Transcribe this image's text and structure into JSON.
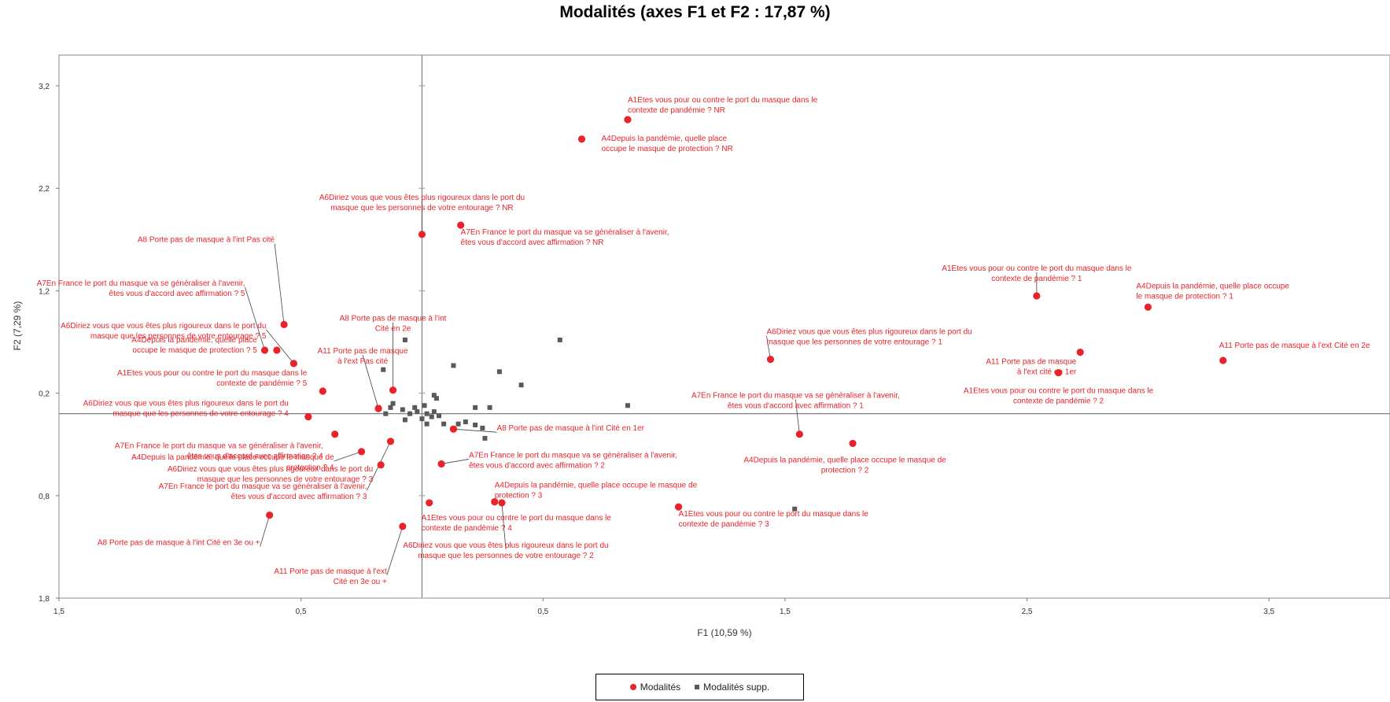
{
  "chart_data": {
    "type": "scatter",
    "title": "Modalités (axes F1 et F2 : 17,87 %)",
    "xlabel": "F1 (10,59 %)",
    "ylabel": "F2 (7,29 %)",
    "xlim": [
      -1.5,
      4.0
    ],
    "ylim": [
      -1.8,
      3.5
    ],
    "x_ticks": [
      {
        "v": -1.5,
        "label": "1,5"
      },
      {
        "v": -0.5,
        "label": "0,5"
      },
      {
        "v": 0.5,
        "label": "0,5"
      },
      {
        "v": 1.5,
        "label": "1,5"
      },
      {
        "v": 2.5,
        "label": "2,5"
      },
      {
        "v": 3.5,
        "label": "3,5"
      }
    ],
    "y_ticks": [
      {
        "v": 3.2,
        "label": "3,2"
      },
      {
        "v": 2.2,
        "label": "2,2"
      },
      {
        "v": 1.2,
        "label": "1,2"
      },
      {
        "v": 0.2,
        "label": "0,2"
      },
      {
        "v": -0.8,
        "label": "0,8"
      },
      {
        "v": -1.8,
        "label": "1,8"
      }
    ],
    "grid": false,
    "legend_position": "bottom",
    "legend": [
      "Modalités",
      "Modalités supp."
    ],
    "colors": {
      "active": "#e8232a",
      "supplementary": "#595959"
    },
    "series": [
      {
        "name": "Modalités",
        "points": [
          {
            "x": 0.85,
            "y": 2.87,
            "label": [
              "A1Etes vous  pour ou contre  le port du masque  dans le",
              "contexte  de pandémie  ? NR"
            ]
          },
          {
            "x": 0.66,
            "y": 2.68,
            "label": [
              "A4Depuis la pandémie,  quelle place",
              "occupe  le masque  de protection  ? NR"
            ]
          },
          {
            "x": 0.0,
            "y": 1.75,
            "label": [
              "A6Diriez vous  que vous êtes plus rigoureux  dans le port du",
              "masque  que les personnes  de votre entourage  ? NR"
            ]
          },
          {
            "x": 0.16,
            "y": 1.84,
            "label": [
              "A7En France  le port du masque  va se généraliser à l'avenir,",
              "êtes vous  d'accord avec affirmation  ? NR"
            ]
          },
          {
            "x": -0.57,
            "y": 0.87,
            "label": [
              "A8 Porte pas de masque  à l'int Pas cité"
            ]
          },
          {
            "x": -0.65,
            "y": 0.62,
            "label": [
              "A7En France  le port du masque  va se généraliser à l'avenir,",
              "êtes vous  d'accord avec affirmation  ? 5"
            ]
          },
          {
            "x": -0.53,
            "y": 0.49,
            "label": [
              "A6Diriez vous  que vous êtes plus rigoureux  dans le port du",
              "masque  que les personnes  de votre entourage  ? 5"
            ]
          },
          {
            "x": -0.6,
            "y": 0.62,
            "label": [
              "A4Depuis la pandémie,  quelle place",
              "occupe  le masque  de protection  ? 5"
            ]
          },
          {
            "x": -0.41,
            "y": 0.22,
            "label": [
              "A1Etes vous  pour ou contre  le port du masque  dans le",
              "contexte  de pandémie  ? 5"
            ]
          },
          {
            "x": -0.47,
            "y": -0.03,
            "label": [
              "A6Diriez vous  que vous êtes plus rigoureux  dans le port du",
              "masque  que les personnes  de votre entourage  ? 4"
            ]
          },
          {
            "x": -0.36,
            "y": -0.2,
            "label": [
              "A7En France  le port du masque  va se généraliser à l'avenir,",
              "êtes vous  d'accord avec affirmation  ? 4"
            ]
          },
          {
            "x": -0.25,
            "y": -0.37,
            "label": [
              "A4Depuis la pandémie,  quelle place occupe  le masque  de",
              "protection  ? 4"
            ]
          },
          {
            "x": -0.13,
            "y": -0.27,
            "label": [
              "A7En France  le port du masque  va se généraliser à l'avenir,",
              "êtes vous  d'accord avec affirmation  ? 3"
            ]
          },
          {
            "x": -0.17,
            "y": -0.5,
            "label": [
              "A6Diriez vous  que vous êtes plus rigoureux  dans le port du",
              "masque  que les personnes  de votre entourage  ? 3"
            ]
          },
          {
            "x": -0.63,
            "y": -0.99,
            "label": [
              "A8 Porte pas de masque  à l'int Cité en 3e ou +"
            ]
          },
          {
            "x": -0.08,
            "y": -1.1,
            "label": [
              "A11 Porte  pas de masque  à l'ext",
              "Cité en 3e ou +"
            ]
          },
          {
            "x": -0.12,
            "y": 0.23,
            "label": [
              "A8 Porte pas de masque  à l'int",
              "Cité en 2e"
            ]
          },
          {
            "x": -0.18,
            "y": 0.05,
            "label": [
              "A11 Porte  pas de masque",
              "à l'ext Pas cité"
            ]
          },
          {
            "x": 0.13,
            "y": -0.15,
            "label": [
              "A8 Porte pas de masque  à l'int Cité en 1er"
            ]
          },
          {
            "x": 0.08,
            "y": -0.49,
            "label": [
              "A7En France  le port du masque  va se généraliser à l'avenir,",
              "êtes vous  d'accord avec affirmation  ? 2"
            ]
          },
          {
            "x": 0.03,
            "y": -0.87,
            "label": [
              "A1Etes vous  pour ou contre  le port du masque  dans le",
              "contexte  de pandémie  ? 4"
            ]
          },
          {
            "x": 0.3,
            "y": -0.86,
            "label": [
              "A4Depuis la pandémie,  quelle place occupe  le masque  de",
              "protection  ? 3"
            ]
          },
          {
            "x": 0.33,
            "y": -0.87,
            "label": [
              "A6Diriez vous  que vous êtes plus rigoureux  dans le port du",
              "masque  que les personnes  de votre entourage  ? 2"
            ]
          },
          {
            "x": 1.06,
            "y": -0.91,
            "label": [
              "A1Etes vous  pour ou contre  le port du masque  dans le",
              "contexte  de pandémie  ? 3"
            ]
          },
          {
            "x": 1.44,
            "y": 0.53,
            "label": [
              "A6Diriez vous  que vous êtes plus rigoureux  dans le port du",
              "masque  que les personnes  de votre entourage  ? 1"
            ]
          },
          {
            "x": 1.56,
            "y": -0.2,
            "label": [
              "A7En France  le port du masque  va se généraliser à l'avenir,",
              "êtes vous  d'accord avec affirmation  ? 1"
            ]
          },
          {
            "x": 1.78,
            "y": -0.29,
            "label": [
              "A4Depuis la pandémie,  quelle place occupe  le masque  de",
              "protection  ? 2"
            ]
          },
          {
            "x": 2.54,
            "y": 1.15,
            "label": [
              "A1Etes vous  pour ou contre  le port du masque  dans le",
              "contexte  de pandémie  ? 1"
            ]
          },
          {
            "x": 3.0,
            "y": 1.04,
            "label": [
              "A4Depuis la pandémie,  quelle place occupe",
              "le masque  de protection  ? 1"
            ]
          },
          {
            "x": 2.72,
            "y": 0.6,
            "label": [
              "A11 Porte  pas de masque",
              "à l'ext  cité en 1er"
            ]
          },
          {
            "x": 3.31,
            "y": 0.52,
            "label": [
              "A11 Porte  pas de masque  à l'ext Cité en 2e"
            ]
          },
          {
            "x": 2.63,
            "y": 0.4,
            "label": [
              "A1Etes vous  pour ou contre  le port du masque  dans le",
              "contexte  de pandémie  ? 2"
            ]
          }
        ]
      },
      {
        "name": "Modalités supp.",
        "points": [
          {
            "x": -0.07,
            "y": 0.72
          },
          {
            "x": 0.57,
            "y": 0.72
          },
          {
            "x": 0.13,
            "y": 0.47
          },
          {
            "x": -0.16,
            "y": 0.43
          },
          {
            "x": 0.32,
            "y": 0.41
          },
          {
            "x": 0.41,
            "y": 0.28
          },
          {
            "x": 0.05,
            "y": 0.18
          },
          {
            "x": 0.06,
            "y": 0.15
          },
          {
            "x": -0.12,
            "y": 0.1
          },
          {
            "x": -0.13,
            "y": 0.06
          },
          {
            "x": -0.18,
            "y": 0.06
          },
          {
            "x": 0.22,
            "y": 0.06
          },
          {
            "x": 0.28,
            "y": 0.06
          },
          {
            "x": 0.85,
            "y": 0.08
          },
          {
            "x": -0.08,
            "y": 0.04
          },
          {
            "x": -0.03,
            "y": 0.06
          },
          {
            "x": 0.01,
            "y": 0.08
          },
          {
            "x": -0.15,
            "y": 0.0
          },
          {
            "x": -0.05,
            "y": 0.0
          },
          {
            "x": -0.02,
            "y": 0.02
          },
          {
            "x": 0.02,
            "y": 0.0
          },
          {
            "x": 0.05,
            "y": 0.02
          },
          {
            "x": 0.04,
            "y": -0.03
          },
          {
            "x": 0.07,
            "y": -0.02
          },
          {
            "x": -0.07,
            "y": -0.06
          },
          {
            "x": 0.0,
            "y": -0.05
          },
          {
            "x": 0.02,
            "y": -0.1
          },
          {
            "x": 0.09,
            "y": -0.1
          },
          {
            "x": 0.15,
            "y": -0.1
          },
          {
            "x": 0.25,
            "y": -0.14
          },
          {
            "x": 0.22,
            "y": -0.11
          },
          {
            "x": 0.18,
            "y": -0.08
          },
          {
            "x": 0.26,
            "y": -0.24
          },
          {
            "x": 1.54,
            "y": -0.93
          }
        ]
      }
    ]
  }
}
